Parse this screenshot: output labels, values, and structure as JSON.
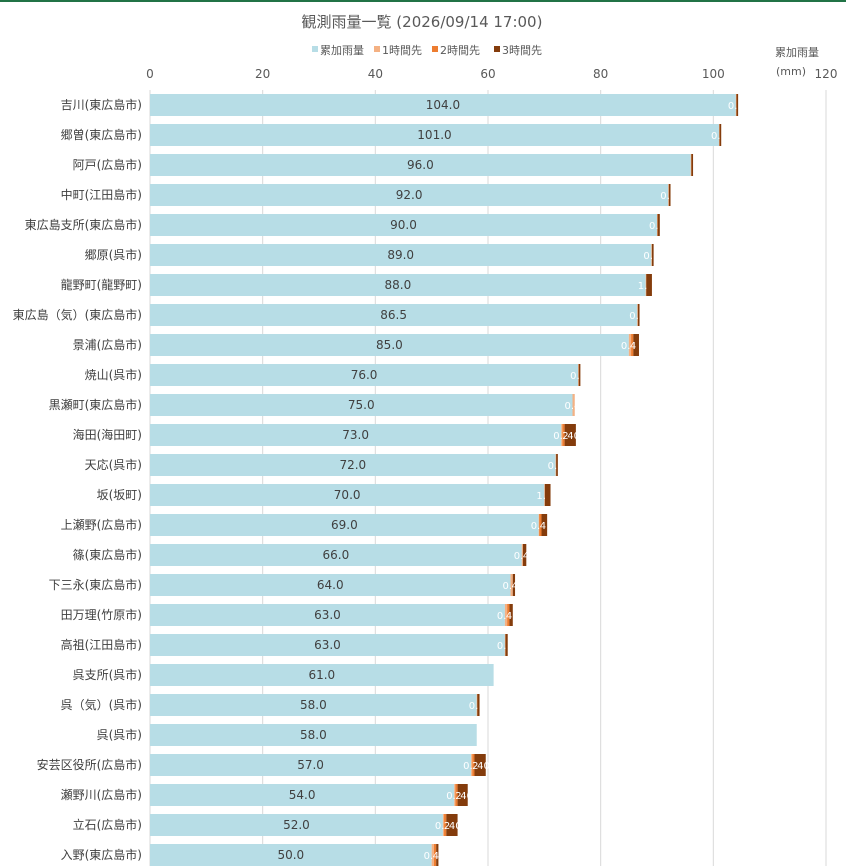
{
  "chart_data": {
    "type": "bar",
    "orientation": "horizontal",
    "stacked": true,
    "title": "観測雨量一覧 (2026/09/14 17:00)",
    "ylabel": "累加雨量",
    "unit": "(mm)",
    "xlim": [
      0,
      120
    ],
    "x_ticks": [
      0,
      20,
      40,
      60,
      80,
      100,
      120
    ],
    "grid": true,
    "legend_position": "top-center",
    "categories": [
      "吉川(東広島市)",
      "郷曽(東広島市)",
      "阿戸(広島市)",
      "中町(江田島市)",
      "東広島支所(東広島市)",
      "郷原(呉市)",
      "龍野町(龍野町)",
      "東広島（気）(東広島市)",
      "景浦(広島市)",
      "焼山(呉市)",
      "黒瀬町(東広島市)",
      "海田(海田町)",
      "天応(呉市)",
      "坂(坂町)",
      "上瀬野(広島市)",
      "篠(東広島市)",
      "下三永(東広島市)",
      "田万理(竹原市)",
      "高祖(江田島市)",
      "呉支所(呉市)",
      "呉（気）(呉市)",
      "呉(呉市)",
      "安芸区役所(広島市)",
      "瀬野川(広島市)",
      "立石(広島市)",
      "入野(東広島市)"
    ],
    "series": [
      {
        "name": "累加雨量",
        "color": "#b7dde6",
        "values": [
          104.0,
          101.0,
          96.0,
          92.0,
          90.0,
          89.0,
          88.0,
          86.5,
          85.0,
          76.0,
          75.0,
          73.0,
          72.0,
          70.0,
          69.0,
          66.0,
          64.0,
          63.0,
          63.0,
          61.0,
          58.0,
          58.0,
          57.0,
          54.0,
          52.0,
          50.0
        ]
      },
      {
        "name": "1時間先",
        "color": "#f4b183",
        "values": [
          0.1,
          0.1,
          0.1,
          0.1,
          0.1,
          0.1,
          0.1,
          0.1,
          0.4,
          0.1,
          0.4,
          0.2,
          0.1,
          0.1,
          0.1,
          0.2,
          0.4,
          0.4,
          0.1,
          0,
          0.1,
          0,
          0.2,
          0.2,
          0.2,
          0.4
        ]
      },
      {
        "name": "2時間先",
        "color": "#ed7d31",
        "values": [
          0,
          0,
          0,
          0,
          0,
          0,
          0,
          0,
          0.4,
          0,
          0,
          0.4,
          0,
          0,
          0.4,
          0,
          0,
          0.4,
          0,
          0,
          0,
          0,
          0.4,
          0.4,
          0.4,
          0.4
        ]
      },
      {
        "name": "3時間先",
        "color": "#843c0c",
        "values": [
          0.3,
          0.3,
          0.3,
          0.3,
          0.4,
          0.3,
          1.0,
          0.3,
          1.0,
          0.3,
          0,
          2.0,
          0.3,
          1.0,
          1.0,
          0.6,
          0.4,
          0.6,
          0.4,
          0,
          0.4,
          0,
          2.0,
          1.8,
          2.0,
          0.4
        ]
      }
    ],
    "data_labels": {
      "1時間先": [
        "0.",
        "0.",
        "",
        "0.",
        "0.",
        "0.",
        "1.",
        "0.",
        "0.",
        "0.",
        "0.4",
        "0.",
        "0.",
        "1.",
        "0.",
        "0.",
        "0.",
        "0.",
        "0.",
        "",
        "0.",
        "",
        "0.",
        "0.",
        "0.",
        "0."
      ],
      "2時間先": [
        "",
        "",
        "",
        "",
        "",
        "",
        "",
        "",
        "4",
        "",
        "",
        "2",
        "",
        "",
        "4",
        "4",
        "4",
        "4",
        "",
        "",
        "",
        "",
        "2",
        "2",
        "2",
        "4"
      ],
      "3時間先": [
        "",
        "",
        "",
        "",
        "",
        "",
        "",
        "",
        "",
        "",
        "",
        "40",
        "",
        "",
        "",
        "",
        "",
        "",
        "",
        "",
        "",
        "",
        "40",
        "40",
        "40",
        ""
      ]
    }
  }
}
